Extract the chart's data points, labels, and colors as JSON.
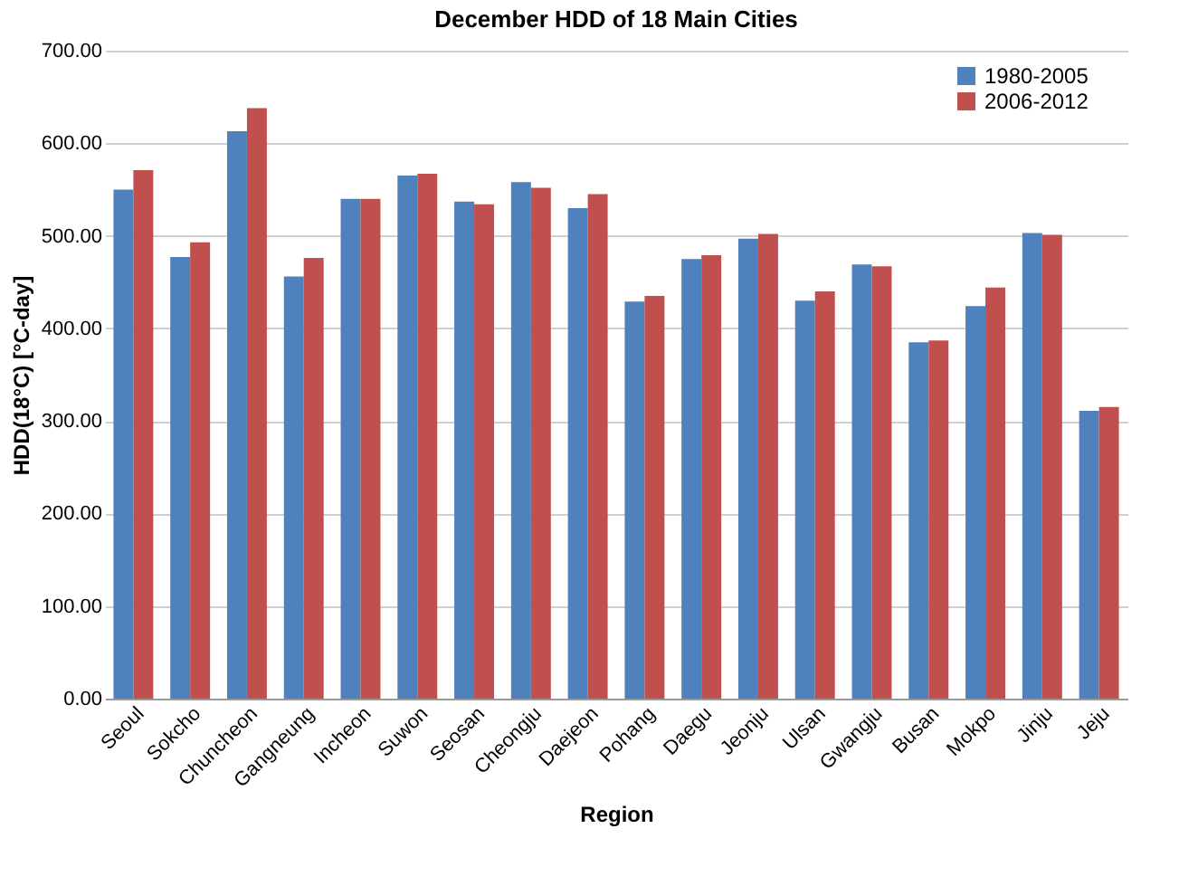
{
  "chart_data": {
    "type": "bar",
    "title": "December HDD of 18 Main Cities",
    "xlabel": "Region",
    "ylabel": "HDD(18°C) [°C-day]",
    "categories": [
      "Seoul",
      "Sokcho",
      "Chuncheon",
      "Gangneung",
      "Incheon",
      "Suwon",
      "Seosan",
      "Cheongju",
      "Daejeon",
      "Pohang",
      "Daegu",
      "Jeonju",
      "Ulsan",
      "Gwangju",
      "Busan",
      "Mokpo",
      "Jinju",
      "Jeju"
    ],
    "series": [
      {
        "name": "1980-2005",
        "color": "#4f81bd",
        "values": [
          550,
          477,
          613,
          456,
          540,
          565,
          537,
          558,
          530,
          429,
          475,
          497,
          430,
          469,
          385,
          424,
          503,
          311
        ]
      },
      {
        "name": "2006-2012",
        "color": "#c0504d",
        "values": [
          571,
          493,
          638,
          476,
          540,
          567,
          534,
          552,
          545,
          435,
          479,
          502,
          440,
          467,
          387,
          444,
          501,
          315
        ]
      }
    ],
    "ylim": [
      0,
      700
    ],
    "yticks": [
      {
        "value": 0,
        "label": "0.00"
      },
      {
        "value": 100,
        "label": "100.00"
      },
      {
        "value": 200,
        "label": "200.00"
      },
      {
        "value": 300,
        "label": "300.00"
      },
      {
        "value": 400,
        "label": "400.00"
      },
      {
        "value": 500,
        "label": "500.00"
      },
      {
        "value": 600,
        "label": "600.00"
      },
      {
        "value": 700,
        "label": "700.00"
      }
    ],
    "grid": "y",
    "legend": "top right"
  }
}
